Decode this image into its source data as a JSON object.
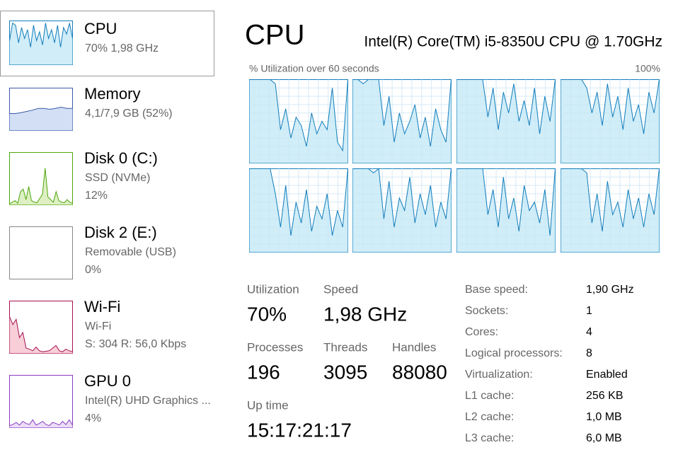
{
  "sidebar": [
    {
      "title": "CPU",
      "details": [
        "70%  1,98 GHz"
      ],
      "color": "#117dbb",
      "fill": "#c4e9f6",
      "graph": [
        55,
        95,
        90,
        50,
        85,
        60,
        80,
        40,
        90,
        55,
        75,
        45,
        95,
        60,
        80,
        50,
        90,
        40,
        85,
        70,
        95,
        60
      ]
    },
    {
      "title": "Memory",
      "details": [
        "4,1/7,9 GB (52%)"
      ],
      "color": "#3b5aa8",
      "fill": "#c7d7f3",
      "graph": [
        40,
        40,
        42,
        45,
        48,
        52,
        52,
        50,
        52,
        55,
        52,
        52
      ]
    },
    {
      "title": "Disk 0 (C:)",
      "details": [
        "SSD (NVMe)",
        "12%"
      ],
      "color": "#4da60c",
      "fill": "#d6ecb4",
      "graph": [
        2,
        5,
        8,
        3,
        25,
        30,
        10,
        35,
        8,
        5,
        4,
        12,
        20,
        70,
        15,
        10,
        5,
        25,
        8,
        5,
        4,
        10,
        5,
        3
      ]
    },
    {
      "title": "Disk 2 (E:)",
      "details": [
        "Removable (USB)",
        "0%"
      ]
    },
    {
      "title": "Wi-Fi",
      "details": [
        "Wi-Fi",
        "S: 304  R: 56,0 Kbps"
      ],
      "color": "#a7104f",
      "fill": "#f6c3d0",
      "graph": [
        70,
        55,
        65,
        30,
        40,
        10,
        8,
        5,
        12,
        5,
        3,
        4,
        5,
        10,
        15,
        5,
        3,
        8,
        5,
        3
      ]
    },
    {
      "title": "GPU 0",
      "details": [
        "Intel(R) UHD Graphics ...",
        "4%"
      ],
      "color": "#8a3bc4",
      "fill": "#e6d4f4",
      "graph": [
        4,
        6,
        10,
        5,
        12,
        8,
        6,
        15,
        5,
        8,
        12,
        6,
        4,
        10,
        8,
        5,
        12,
        6,
        15,
        5
      ]
    }
  ],
  "header": {
    "title": "CPU",
    "model": "Intel(R) Core(TM) i5-8350U CPU @ 1.70GHz"
  },
  "graph": {
    "label": "% Utilization over 60 seconds",
    "max": "100%",
    "color": "#117dbb",
    "fill": "#c4e9f6",
    "cores": [
      [
        100,
        100,
        100,
        100,
        100,
        95,
        40,
        65,
        30,
        55,
        45,
        20,
        60,
        35,
        50,
        40,
        90,
        25,
        15,
        100
      ],
      [
        100,
        100,
        95,
        100,
        100,
        100,
        45,
        80,
        25,
        60,
        35,
        50,
        70,
        30,
        55,
        20,
        65,
        40,
        25,
        100
      ],
      [
        100,
        100,
        100,
        100,
        100,
        100,
        55,
        90,
        40,
        85,
        60,
        95,
        50,
        75,
        45,
        90,
        35,
        80,
        50,
        100
      ],
      [
        100,
        100,
        100,
        100,
        100,
        90,
        60,
        85,
        45,
        95,
        55,
        80,
        40,
        90,
        50,
        70,
        35,
        85,
        60,
        100
      ],
      [
        100,
        100,
        100,
        100,
        100,
        70,
        30,
        80,
        20,
        60,
        35,
        75,
        25,
        55,
        40,
        70,
        20,
        50,
        30,
        100
      ],
      [
        100,
        100,
        100,
        100,
        95,
        100,
        40,
        85,
        30,
        65,
        50,
        90,
        35,
        70,
        45,
        80,
        30,
        60,
        40,
        100
      ],
      [
        100,
        100,
        100,
        100,
        100,
        100,
        45,
        75,
        30,
        90,
        40,
        65,
        25,
        80,
        50,
        60,
        35,
        75,
        20,
        100
      ],
      [
        100,
        100,
        100,
        100,
        100,
        95,
        35,
        70,
        25,
        85,
        45,
        60,
        30,
        75,
        40,
        65,
        30,
        70,
        45,
        100
      ]
    ]
  },
  "stats": [
    {
      "label": "Utilization",
      "value": "70%"
    },
    {
      "label": "Speed",
      "value": "1,98 GHz"
    },
    {
      "label": "Processes",
      "value": "196"
    },
    {
      "label": "Threads",
      "value": "3095"
    },
    {
      "label": "Handles",
      "value": "88080"
    },
    {
      "label": "Up time",
      "value": "15:17:21:17"
    }
  ],
  "specs": [
    {
      "label": "Base speed:",
      "value": "1,90 GHz"
    },
    {
      "label": "Sockets:",
      "value": "1"
    },
    {
      "label": "Cores:",
      "value": "4"
    },
    {
      "label": "Logical processors:",
      "value": "8"
    },
    {
      "label": "Virtualization:",
      "value": "Enabled"
    },
    {
      "label": "L1 cache:",
      "value": "256 KB"
    },
    {
      "label": "L2 cache:",
      "value": "1,0 MB"
    },
    {
      "label": "L3 cache:",
      "value": "6,0 MB"
    }
  ]
}
